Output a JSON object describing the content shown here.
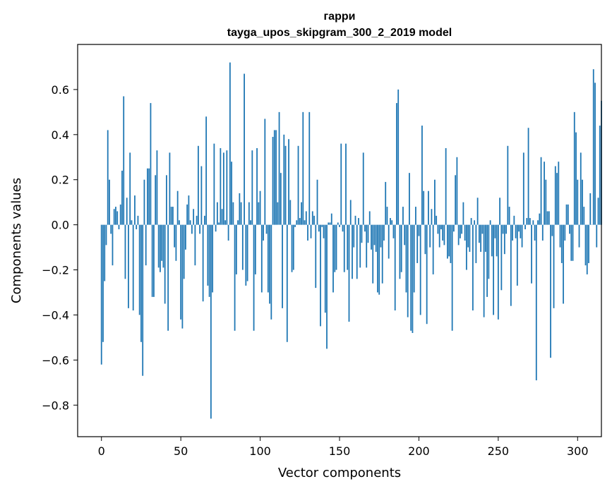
{
  "chart_data": {
    "type": "bar",
    "title": "гарри",
    "subtitle": "tayga_upos_skipgram_300_2_2019 model",
    "xlabel": "Vector components",
    "ylabel": "Components values",
    "xlim": [
      -15,
      315
    ],
    "ylim": [
      -0.94,
      0.8
    ],
    "xticks": [
      0,
      50,
      100,
      150,
      200,
      250,
      300
    ],
    "yticks": [
      -0.8,
      -0.6,
      -0.4,
      -0.2,
      0.0,
      0.2,
      0.4,
      0.6
    ],
    "ytick_labels": [
      "−0.8",
      "−0.6",
      "−0.4",
      "−0.2",
      "0.0",
      "0.2",
      "0.4",
      "0.6"
    ],
    "grid": false,
    "bar_color": "#1f77b4",
    "values": [
      -0.62,
      -0.52,
      -0.25,
      -0.09,
      0.42,
      0.2,
      -0.04,
      -0.18,
      0.07,
      0.08,
      0.06,
      -0.02,
      0.09,
      0.24,
      0.57,
      -0.24,
      0.12,
      -0.37,
      0.32,
      0.02,
      -0.38,
      0.13,
      -0.02,
      0.04,
      -0.4,
      -0.52,
      -0.67,
      0.2,
      -0.18,
      0.25,
      0.25,
      0.54,
      -0.32,
      -0.32,
      0.22,
      0.33,
      -0.19,
      -0.21,
      -0.16,
      -0.19,
      -0.35,
      0.22,
      -0.47,
      0.32,
      0.08,
      0.08,
      -0.1,
      -0.16,
      0.15,
      0.02,
      -0.42,
      -0.46,
      -0.24,
      -0.11,
      0.09,
      0.13,
      0.02,
      -0.04,
      0.07,
      -0.18,
      0.04,
      0.35,
      -0.04,
      0.26,
      -0.34,
      0.04,
      0.48,
      -0.27,
      -0.32,
      -0.86,
      -0.3,
      0.36,
      -0.03,
      0.1,
      0.01,
      0.34,
      0.07,
      0.32,
      0.02,
      0.33,
      -0.07,
      0.72,
      0.28,
      0.1,
      -0.47,
      -0.22,
      0.02,
      0.14,
      0.1,
      -0.2,
      0.67,
      -0.27,
      -0.25,
      0.1,
      0.02,
      0.33,
      -0.47,
      -0.22,
      0.34,
      0.1,
      0.15,
      -0.3,
      -0.07,
      0.47,
      -0.04,
      -0.3,
      -0.35,
      -0.42,
      0.39,
      0.42,
      0.42,
      0.1,
      0.5,
      0.23,
      -0.37,
      0.4,
      0.35,
      -0.52,
      0.38,
      0.11,
      -0.21,
      -0.2,
      -0.01,
      0.02,
      0.35,
      0.03,
      0.1,
      0.5,
      0.02,
      0.06,
      -0.07,
      0.5,
      -0.06,
      0.06,
      0.04,
      -0.28,
      0.2,
      -0.03,
      -0.45,
      -0.01,
      -0.06,
      -0.39,
      -0.55,
      0.01,
      0.01,
      0.05,
      -0.3,
      -0.21,
      -0.2,
      0.01,
      -0.01,
      0.36,
      -0.03,
      -0.21,
      0.36,
      -0.2,
      -0.43,
      0.11,
      -0.24,
      -0.1,
      0.04,
      -0.24,
      0.03,
      -0.19,
      -0.08,
      0.32,
      -0.03,
      -0.19,
      -0.08,
      0.06,
      -0.11,
      -0.26,
      -0.09,
      -0.12,
      -0.3,
      -0.31,
      -0.1,
      -0.26,
      -0.07,
      0.19,
      0.08,
      -0.15,
      0.03,
      0.02,
      -0.06,
      -0.38,
      0.54,
      0.6,
      -0.24,
      -0.21,
      0.08,
      -0.09,
      -0.3,
      -0.41,
      0.23,
      -0.47,
      -0.48,
      -0.3,
      0.08,
      -0.17,
      -0.05,
      -0.4,
      0.44,
      0.15,
      -0.13,
      -0.44,
      0.15,
      -0.1,
      0.07,
      -0.22,
      0.2,
      0.04,
      -0.04,
      -0.1,
      -0.02,
      -0.07,
      -0.09,
      0.34,
      -0.15,
      -0.14,
      -0.17,
      -0.47,
      -0.03,
      0.22,
      0.3,
      -0.09,
      -0.06,
      -0.04,
      0.1,
      -0.07,
      -0.2,
      -0.1,
      -0.12,
      0.03,
      -0.38,
      0.02,
      -0.17,
      0.12,
      -0.08,
      -0.12,
      -0.04,
      -0.41,
      -0.12,
      -0.32,
      -0.24,
      0.02,
      -0.14,
      -0.4,
      -0.06,
      -0.14,
      -0.42,
      0.12,
      -0.29,
      -0.04,
      -0.13,
      -0.04,
      0.35,
      0.08,
      -0.36,
      -0.07,
      0.04,
      -0.06,
      -0.27,
      -0.03,
      -0.06,
      -0.1,
      0.32,
      -0.02,
      0.03,
      0.43,
      0.03,
      -0.26,
      0.02,
      -0.07,
      -0.69,
      0.02,
      0.05,
      0.3,
      -0.07,
      0.28,
      0.2,
      0.06,
      0.06,
      -0.59,
      -0.05,
      -0.37,
      0.26,
      0.23,
      0.28,
      -0.1,
      -0.17,
      -0.35,
      -0.07,
      0.09,
      0.09,
      -0.04,
      -0.16,
      -0.16,
      0.5,
      0.41,
      0.2,
      -0.1,
      0.32,
      0.2,
      0.08,
      -0.18,
      -0.22,
      -0.17,
      0.14,
      0.0,
      0.69,
      0.63,
      -0.1,
      0.12,
      0.44,
      0.55
    ]
  }
}
